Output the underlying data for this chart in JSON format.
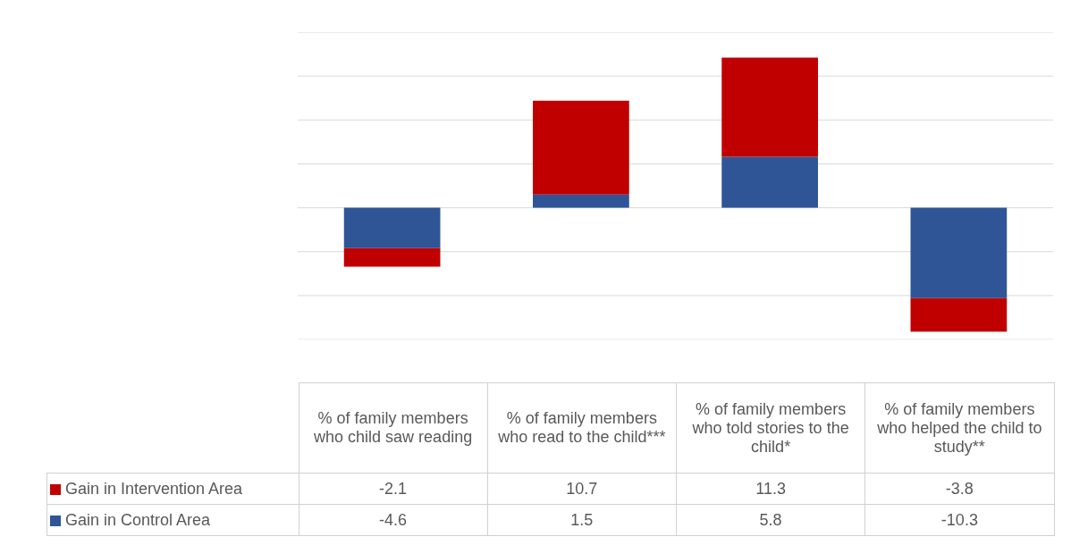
{
  "chart_data": {
    "type": "bar",
    "stacked": true,
    "categories": [
      "% of family members who child saw reading",
      "% of family members who read to the child***",
      "% of family members who told stories to the child*",
      "% of family members who helped the child to study**"
    ],
    "series": [
      {
        "name": "Gain in Control Area",
        "color": "#2f5597",
        "values": [
          -4.6,
          1.5,
          5.8,
          -10.3
        ]
      },
      {
        "name": "Gain in Intervention Area",
        "color": "#c00000",
        "values": [
          -2.1,
          10.7,
          11.3,
          -3.8
        ]
      }
    ],
    "legend": "bottom left",
    "yticks": [
      {
        "value": -15,
        "label": null
      },
      {
        "value": -10,
        "label": null
      },
      {
        "value": -5,
        "label": null
      },
      {
        "value": 0,
        "label": null
      },
      {
        "value": 5,
        "label": null
      },
      {
        "value": 10,
        "label": null
      },
      {
        "value": 15,
        "label": null
      },
      {
        "value": 20,
        "label": null
      }
    ],
    "grid": true,
    "data_labels": true
  }
}
